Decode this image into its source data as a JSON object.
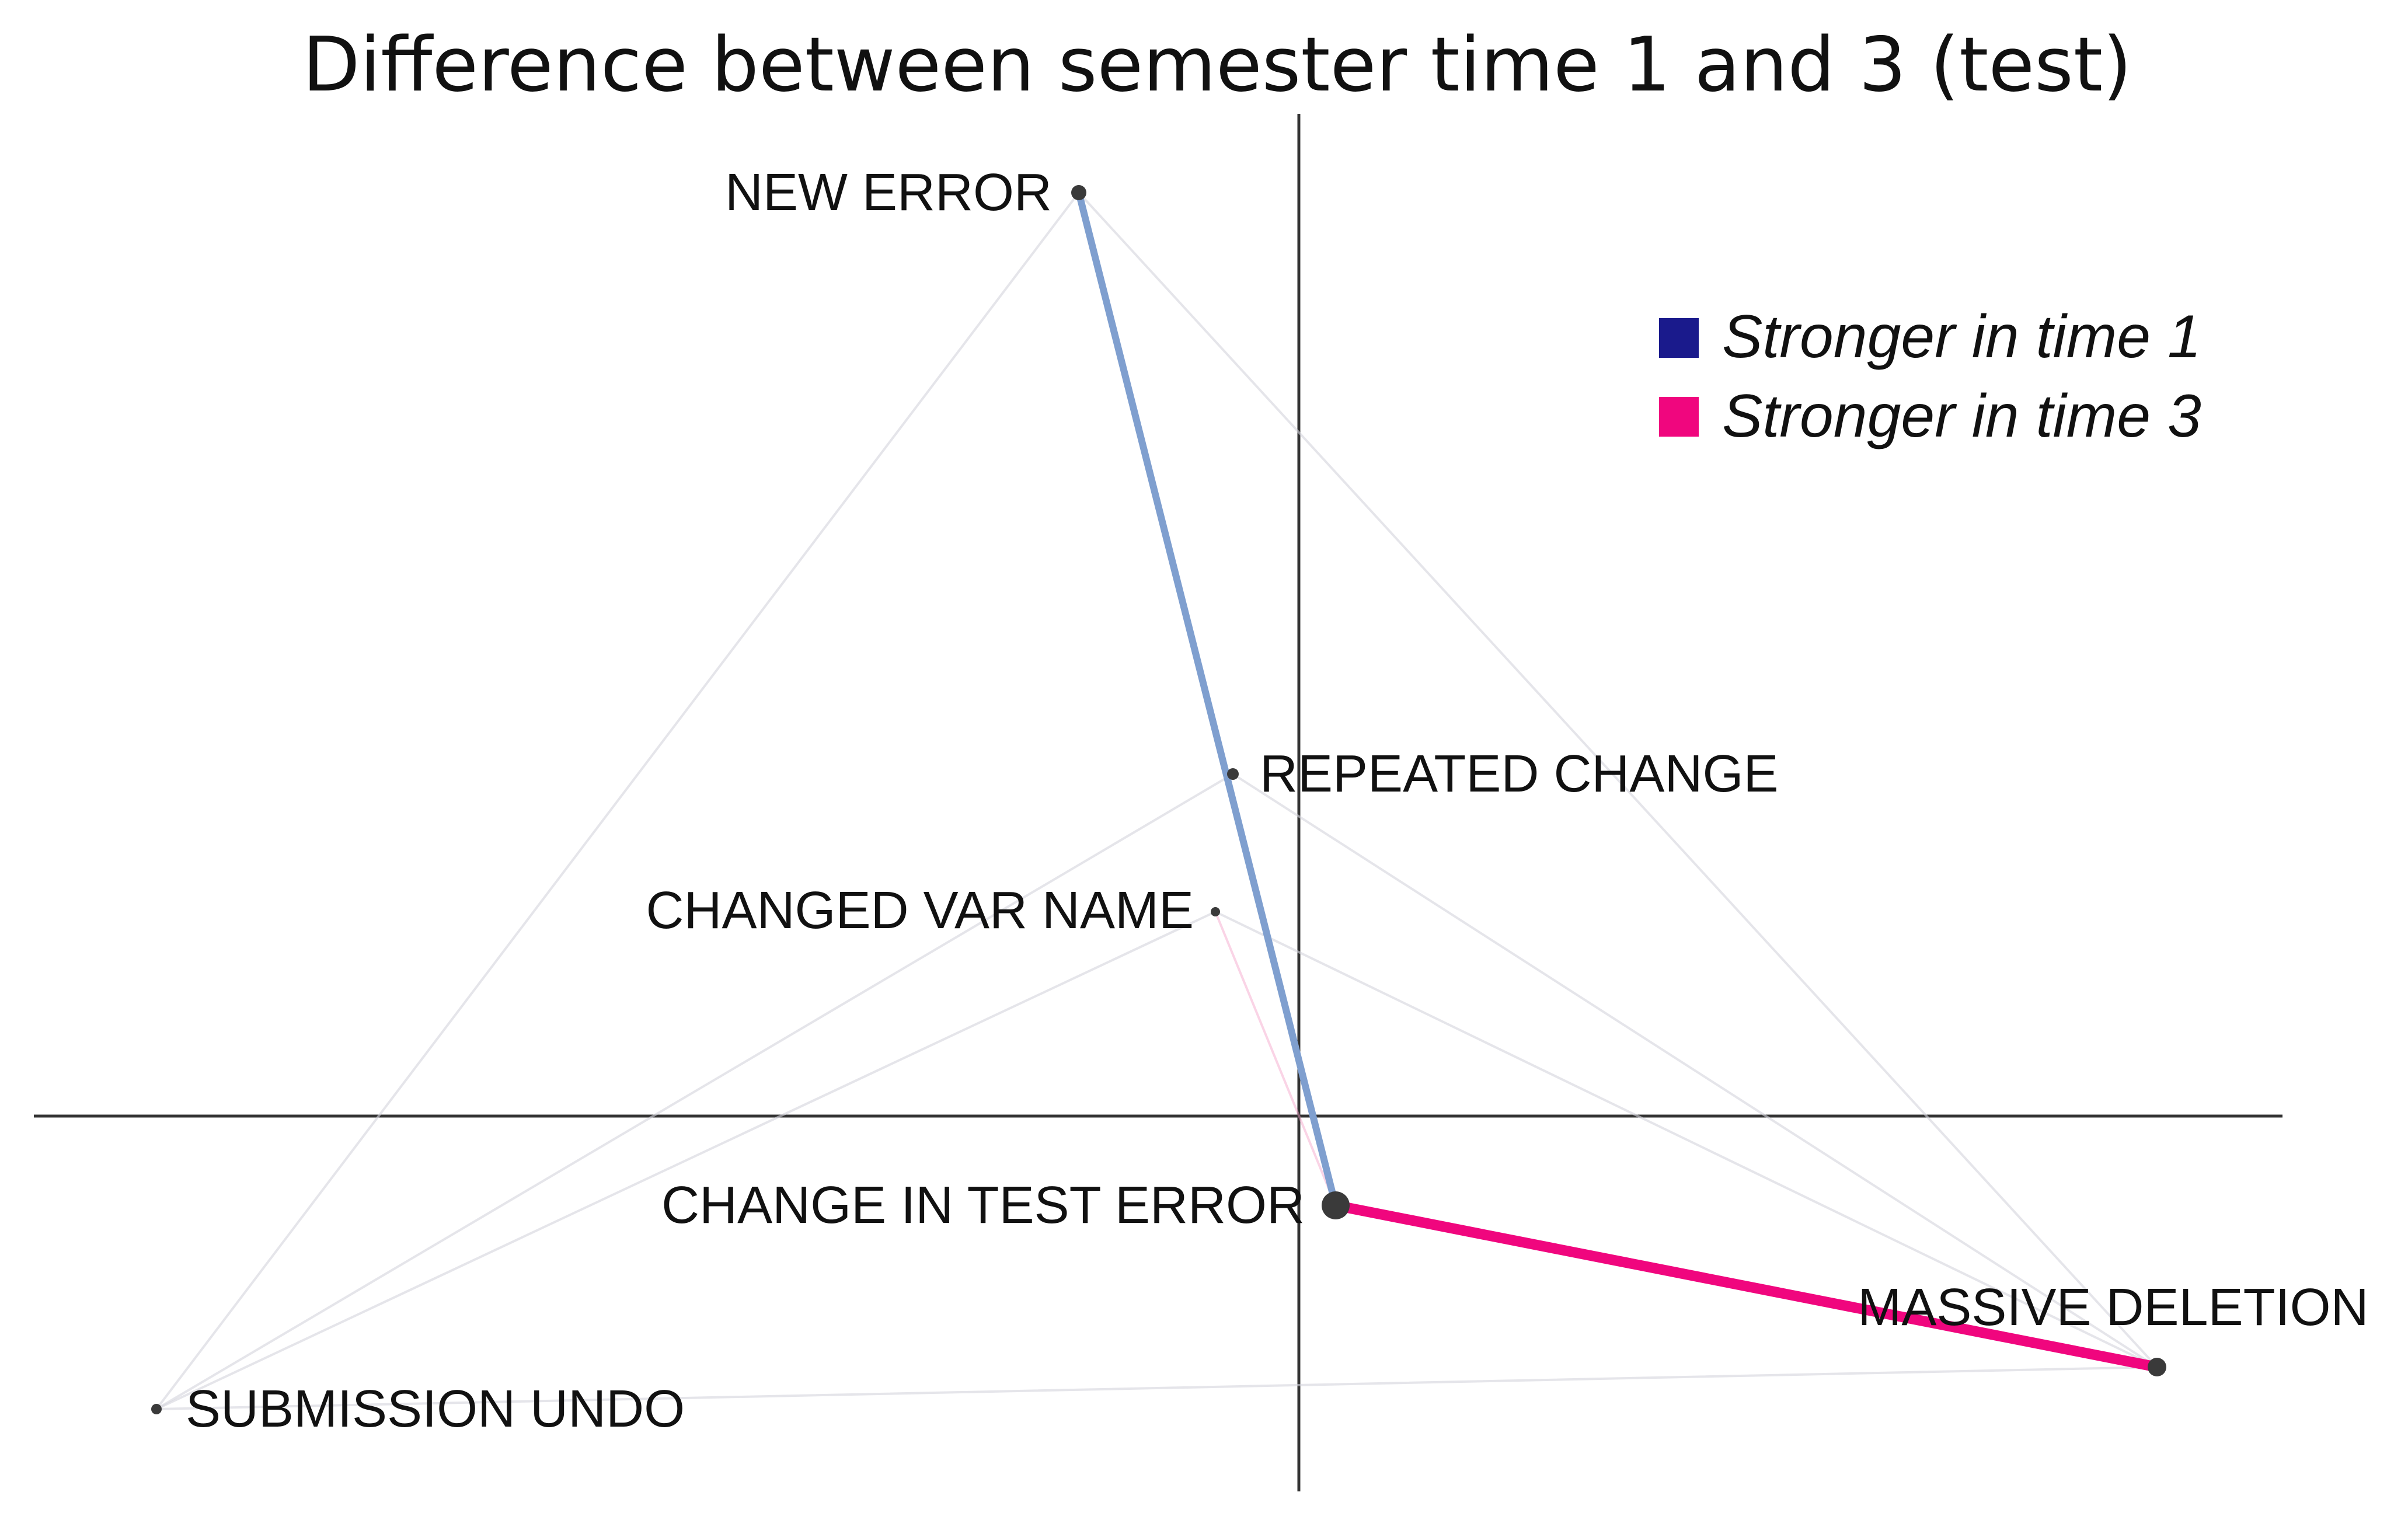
{
  "title": "Difference between semester time 1 and 3 (test)",
  "legend": [
    {
      "label": "Stronger in time 1",
      "color": "#1a1a8c"
    },
    {
      "label": "Stronger in time 3",
      "color": "#f0067e"
    }
  ],
  "nodes": [
    {
      "id": "new_error",
      "label": "NEW ERROR"
    },
    {
      "id": "repeated_change",
      "label": "REPEATED CHANGE"
    },
    {
      "id": "changed_var_name",
      "label": "CHANGED VAR NAME"
    },
    {
      "id": "change_in_test_error",
      "label": "CHANGE IN TEST ERROR"
    },
    {
      "id": "massive_deletion",
      "label": "MASSIVE DELETION"
    },
    {
      "id": "submission_undo",
      "label": "SUBMISSION UNDO"
    }
  ],
  "edges": [
    {
      "from": "new_error",
      "to": "change_in_test_error",
      "strength": "strong",
      "direction": "time1"
    },
    {
      "from": "change_in_test_error",
      "to": "massive_deletion",
      "strength": "strong",
      "direction": "time3"
    },
    {
      "from": "new_error",
      "to": "submission_undo",
      "strength": "faint",
      "direction": "neutral"
    },
    {
      "from": "repeated_change",
      "to": "submission_undo",
      "strength": "faint",
      "direction": "neutral"
    },
    {
      "from": "changed_var_name",
      "to": "submission_undo",
      "strength": "faint",
      "direction": "neutral"
    },
    {
      "from": "submission_undo",
      "to": "massive_deletion",
      "strength": "faint",
      "direction": "neutral"
    },
    {
      "from": "changed_var_name",
      "to": "change_in_test_error",
      "strength": "faint",
      "direction": "time3"
    },
    {
      "from": "new_error",
      "to": "massive_deletion",
      "strength": "faint",
      "direction": "neutral"
    },
    {
      "from": "repeated_change",
      "to": "massive_deletion",
      "strength": "faint",
      "direction": "neutral"
    },
    {
      "from": "changed_var_name",
      "to": "massive_deletion",
      "strength": "faint",
      "direction": "neutral"
    }
  ]
}
